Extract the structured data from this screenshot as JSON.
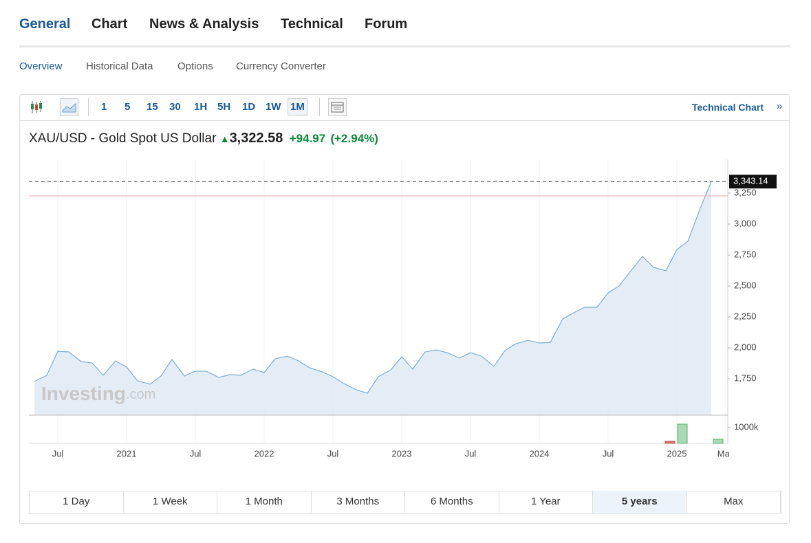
{
  "tabs": {
    "items": [
      "General",
      "Chart",
      "News & Analysis",
      "Technical",
      "Forum"
    ],
    "active": 0
  },
  "subtabs": {
    "items": [
      "Overview",
      "Historical Data",
      "Options",
      "Currency Converter"
    ],
    "active": 0
  },
  "toolbar": {
    "intervals": [
      "1",
      "5",
      "15",
      "30",
      "1H",
      "5H",
      "1D",
      "1W",
      "1M"
    ],
    "active": 8,
    "link": "Technical Chart",
    "link_icon": "»"
  },
  "header": {
    "title": "XAU/USD - Gold Spot US Dollar",
    "price": "3,322.58",
    "change": "+94.97",
    "percent": "(+2.94%)"
  },
  "watermark": {
    "brand": "Investing",
    "suffix": ".com"
  },
  "chart_data": {
    "type": "area",
    "color": "#7aaed6",
    "fill": "#dde9f4",
    "x": [
      2020.33,
      2020.42,
      2020.5,
      2020.58,
      2020.67,
      2020.75,
      2020.83,
      2020.92,
      2021.0,
      2021.08,
      2021.17,
      2021.25,
      2021.33,
      2021.42,
      2021.5,
      2021.58,
      2021.67,
      2021.75,
      2021.83,
      2021.92,
      2022.0,
      2022.08,
      2022.17,
      2022.25,
      2022.33,
      2022.42,
      2022.5,
      2022.58,
      2022.67,
      2022.75,
      2022.83,
      2022.92,
      2023.0,
      2023.08,
      2023.17,
      2023.25,
      2023.33,
      2023.42,
      2023.5,
      2023.58,
      2023.67,
      2023.75,
      2023.83,
      2023.92,
      2024.0,
      2024.08,
      2024.17,
      2024.25,
      2024.33,
      2024.42,
      2024.5,
      2024.58,
      2024.67,
      2024.75,
      2024.83,
      2024.92,
      2025.0,
      2025.08,
      2025.17,
      2025.25
    ],
    "values": [
      1728,
      1778,
      1972,
      1967,
      1889,
      1878,
      1778,
      1894,
      1844,
      1733,
      1706,
      1772,
      1906,
      1772,
      1811,
      1811,
      1761,
      1783,
      1778,
      1828,
      1800,
      1911,
      1933,
      1894,
      1839,
      1806,
      1767,
      1711,
      1661,
      1633,
      1767,
      1822,
      1928,
      1828,
      1967,
      1983,
      1961,
      1917,
      1961,
      1933,
      1850,
      1978,
      2033,
      2061,
      2039,
      2044,
      2233,
      2283,
      2328,
      2328,
      2444,
      2500,
      2628,
      2739,
      2650,
      2622,
      2794,
      2861,
      3128,
      3343
    ],
    "xlim": [
      2020.29,
      2025.37
    ],
    "xticks": [
      {
        "value": 2020.5,
        "label": "Jul"
      },
      {
        "value": 2021,
        "label": "2021"
      },
      {
        "value": 2021.5,
        "label": "Jul"
      },
      {
        "value": 2022,
        "label": "2022"
      },
      {
        "value": 2022.5,
        "label": "Jul"
      },
      {
        "value": 2023,
        "label": "2023"
      },
      {
        "value": 2023.5,
        "label": "Jul"
      },
      {
        "value": 2024,
        "label": "2024"
      },
      {
        "value": 2024.5,
        "label": "Jul"
      },
      {
        "value": 2025,
        "label": "2025"
      },
      {
        "value": 2025.35,
        "label": "Mar"
      }
    ],
    "ylim": [
      1456,
      3522
    ],
    "yticks": [
      {
        "value": 1750,
        "label": "1,750"
      },
      {
        "value": 2000,
        "label": "2,000"
      },
      {
        "value": 2250,
        "label": "2,250"
      },
      {
        "value": 2500,
        "label": "2,500"
      },
      {
        "value": 2750,
        "label": "2,750"
      },
      {
        "value": 3000,
        "label": "3,000"
      },
      {
        "value": 3250,
        "label": "3,250"
      }
    ],
    "grid": true,
    "last": {
      "value": 3343.14,
      "label": "3,343.14"
    },
    "previous_close": 3227.61,
    "volume": {
      "x": [
        2024.95,
        2025.04,
        2025.3
      ],
      "values": [
        130,
        1220,
        260
      ],
      "colors": [
        "#e07a7a",
        "#a8dbb3",
        "#a8dbb3"
      ],
      "y2lim": [
        0,
        1700
      ],
      "y2ticks": [
        {
          "value": 1000,
          "label": "1000k"
        }
      ]
    }
  },
  "ranges": {
    "items": [
      "1 Day",
      "1 Week",
      "1 Month",
      "3 Months",
      "6 Months",
      "1 Year",
      "5 years",
      "Max"
    ],
    "active": 6
  }
}
